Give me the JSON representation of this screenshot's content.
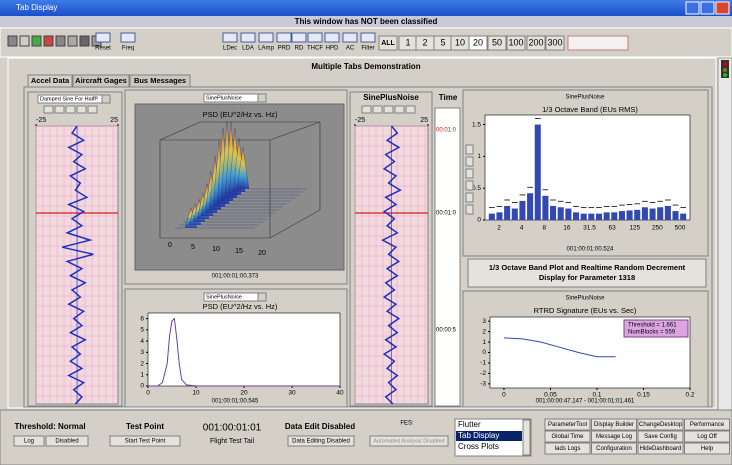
{
  "window": {
    "title": "Tab Display",
    "banner": "This window has NOT been classified"
  },
  "toolbar": {
    "tools": [
      "Reset",
      "Freq",
      "LDec",
      "LDA",
      "LAmp",
      "PRD",
      "RD",
      "THCF",
      "HPD",
      "AC",
      "Filter"
    ],
    "scales": [
      "ALL",
      "1",
      "2",
      "5",
      "10",
      "20",
      "50",
      "100",
      "200",
      "300"
    ]
  },
  "panel": {
    "title": "Multiple Tabs Demonstration",
    "tabs": [
      "Accel Data",
      "Aircraft Gages",
      "Bus Messages"
    ]
  },
  "strip_left": {
    "selector": "Damped Sine For HalfP",
    "xlim": [
      -25,
      25
    ],
    "xticks": [
      -25,
      25
    ],
    "values": [
      0,
      -3,
      4,
      -5,
      3,
      -2,
      5,
      -4,
      2,
      -1,
      6,
      -5,
      4,
      -3,
      3,
      -6,
      8,
      -9,
      10,
      -6,
      3,
      -4,
      5,
      -3,
      2,
      -5,
      4,
      -2,
      3,
      -4,
      5,
      -3,
      2,
      -4,
      3,
      -5,
      4,
      -2,
      3,
      -1
    ]
  },
  "waterfall": {
    "selector": "SinePlusNoise",
    "title": "PSD  (EU^2/Hz vs. Hz)",
    "xticks": [
      0,
      5,
      10,
      15,
      20
    ],
    "timestamp": "001:00:01:00.373"
  },
  "psd": {
    "selector": "SinePlusNoise",
    "title": "PSD  (EU^2/Hz vs. Hz)",
    "xlim": [
      0,
      40
    ],
    "xticks": [
      0,
      10,
      20,
      30,
      40
    ],
    "ylim": [
      0,
      6.5
    ],
    "yticks": [
      0,
      1,
      2,
      3,
      4,
      5,
      6
    ],
    "x": [
      0,
      2,
      3,
      4,
      4.5,
      5,
      5.5,
      6,
      6.5,
      7,
      8,
      10,
      15,
      20,
      30,
      40
    ],
    "y": [
      0,
      0,
      0.3,
      2,
      4.5,
      5.8,
      6,
      4.2,
      2,
      0.6,
      0.1,
      0,
      0,
      0,
      0,
      0
    ],
    "color": "#6a3fa0",
    "timestamp": "001:00:01:00.545"
  },
  "strip_mid": {
    "title": "SinePlusNoise",
    "xlim": [
      -25,
      25
    ],
    "xticks": [
      -25,
      25
    ],
    "values": [
      0,
      4,
      -3,
      5,
      -4,
      2,
      -5,
      3,
      -2,
      6,
      -4,
      3,
      -5,
      2,
      -3,
      4,
      -6,
      3,
      -2,
      5,
      -3,
      4,
      -4,
      2,
      -5,
      3,
      -3,
      5,
      -2,
      4,
      -4,
      3,
      -5,
      2,
      -3,
      4,
      -2,
      3,
      -4,
      1
    ]
  },
  "time": {
    "title": "Time",
    "labels": [
      "00:01:0",
      "00:01:0",
      "00:00:5"
    ]
  },
  "octave": {
    "label": "SinePlusNoise",
    "title": "1/3 Octave Band (EUs RMS)",
    "ylim": [
      0,
      1.65
    ],
    "yticks": [
      0,
      0.5,
      1,
      1.5
    ],
    "xlabels": [
      "2",
      "4",
      "8",
      "16",
      "31.5",
      "63",
      "125",
      "250",
      "500"
    ],
    "values": [
      0.1,
      0.12,
      0.22,
      0.18,
      0.3,
      0.42,
      1.5,
      0.38,
      0.22,
      0.2,
      0.18,
      0.12,
      0.1,
      0.1,
      0.1,
      0.12,
      0.12,
      0.14,
      0.15,
      0.16,
      0.2,
      0.18,
      0.2,
      0.22,
      0.14,
      0.1
    ],
    "color": "#3348b0",
    "timestamp": "001:00:01:00.524"
  },
  "description": [
    "1/3 Octave Band Plot and Realtime Random Decrement",
    "Display for Parameter 1318"
  ],
  "rtrd": {
    "label": "SinePlusNoise",
    "title": "RTRD Signature (EUs vs. Sec)",
    "xlim": [
      -0.015,
      0.2
    ],
    "xticks": [
      0,
      0.05,
      0.1,
      0.15,
      0.2
    ],
    "ylim": [
      -3.4,
      3.4
    ],
    "yticks": [
      -3,
      -2,
      -1,
      0,
      1,
      2,
      3
    ],
    "x": [
      0,
      0.02,
      0.04,
      0.06,
      0.08,
      0.1,
      0.12
    ],
    "y": [
      1.4,
      1.3,
      1.0,
      0.5,
      0,
      -0.4,
      -0.4
    ],
    "color": "#3348b0",
    "legend": [
      "Threshold = 1.661",
      "NumBlocks = 559"
    ],
    "timestamp": "001:00:00:47.147 - 001:00:01:01.461"
  },
  "status": {
    "threshold": {
      "title": "Threshold: Normal",
      "buttons": [
        "Log",
        "Disabled"
      ]
    },
    "test_point": {
      "title": "Test Point",
      "button": "Start Test Point"
    },
    "clock": {
      "time": "001:00:01:01",
      "tail": "Flight Test Tail"
    },
    "data_edit": {
      "title": "Data Edit Disabled",
      "button": "Data Editing Disabled"
    },
    "fes": {
      "title": "FES:",
      "button": "Automated Analysis Disabled"
    },
    "desktops": {
      "items": [
        "Flutter",
        "Tab Display",
        "Cross Plots"
      ],
      "selected": 1
    },
    "buttons": [
      "ParameterTool",
      "Display Builder",
      "ChangeDesktop",
      "Performance",
      "Global Time",
      "Message Log",
      "Save Config",
      "Log Off",
      "Iads Logs",
      "Configuration",
      "HideDashboard",
      "Help"
    ]
  }
}
